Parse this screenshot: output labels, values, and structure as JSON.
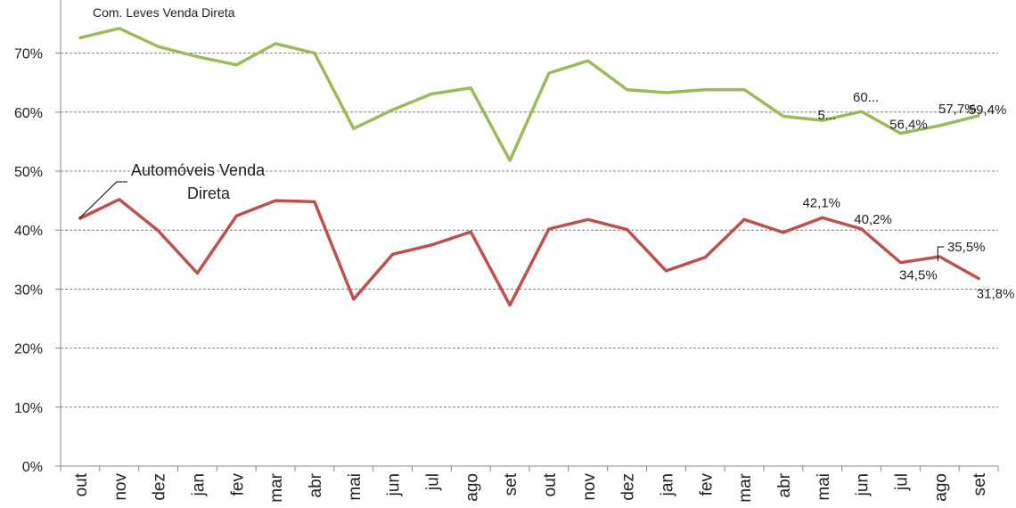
{
  "chart_data": {
    "type": "line",
    "categories": [
      "out",
      "nov",
      "dez",
      "jan",
      "fev",
      "mar",
      "abr",
      "mai",
      "jun",
      "jul",
      "ago",
      "set",
      "out",
      "nov",
      "dez",
      "jan",
      "fev",
      "mar",
      "abr",
      "mai",
      "jun",
      "jul",
      "ago",
      "set"
    ],
    "ylim": [
      0,
      0.75
    ],
    "yticks": [
      "0%",
      "10%",
      "20%",
      "30%",
      "40%",
      "50%",
      "60%",
      "70%"
    ],
    "ytick_values": [
      0,
      0.1,
      0.2,
      0.3,
      0.4,
      0.5,
      0.6,
      0.7
    ],
    "grid": true,
    "series": [
      {
        "name": "Com. Leves Venda Direta",
        "color": "#9bbb59",
        "values": [
          0.726,
          0.742,
          0.711,
          0.694,
          0.68,
          0.716,
          0.7,
          0.572,
          0.604,
          0.631,
          0.641,
          0.518,
          0.666,
          0.687,
          0.638,
          0.633,
          0.638,
          0.638,
          0.593,
          0.586,
          0.601,
          0.564,
          0.577,
          0.594
        ],
        "data_labels": [
          {
            "index": 19,
            "text": "5..."
          },
          {
            "index": 20,
            "text": "60..."
          },
          {
            "index": 21,
            "text": "56,4%"
          },
          {
            "index": 22,
            "text": "57,7%"
          },
          {
            "index": 23,
            "text": "59,4%"
          }
        ]
      },
      {
        "name": "Automóveis Venda Direta",
        "color": "#c0504d",
        "values": [
          0.42,
          0.452,
          0.399,
          0.327,
          0.424,
          0.45,
          0.448,
          0.283,
          0.359,
          0.375,
          0.397,
          0.273,
          0.402,
          0.418,
          0.401,
          0.331,
          0.354,
          0.418,
          0.396,
          0.421,
          0.402,
          0.345,
          0.355,
          0.318
        ],
        "data_labels": [
          {
            "index": 19,
            "text": "42,1%"
          },
          {
            "index": 20,
            "text": "40,2%"
          },
          {
            "index": 21,
            "text": "34,5%"
          },
          {
            "index": 22,
            "text": "35,5%"
          },
          {
            "index": 23,
            "text": "31,8%"
          }
        ]
      }
    ],
    "series_labels": [
      {
        "series": 0,
        "lines": [
          "Com. Leves Venda Direta"
        ]
      },
      {
        "series": 1,
        "lines": [
          "Automóveis Venda",
          "Direta"
        ]
      }
    ]
  }
}
